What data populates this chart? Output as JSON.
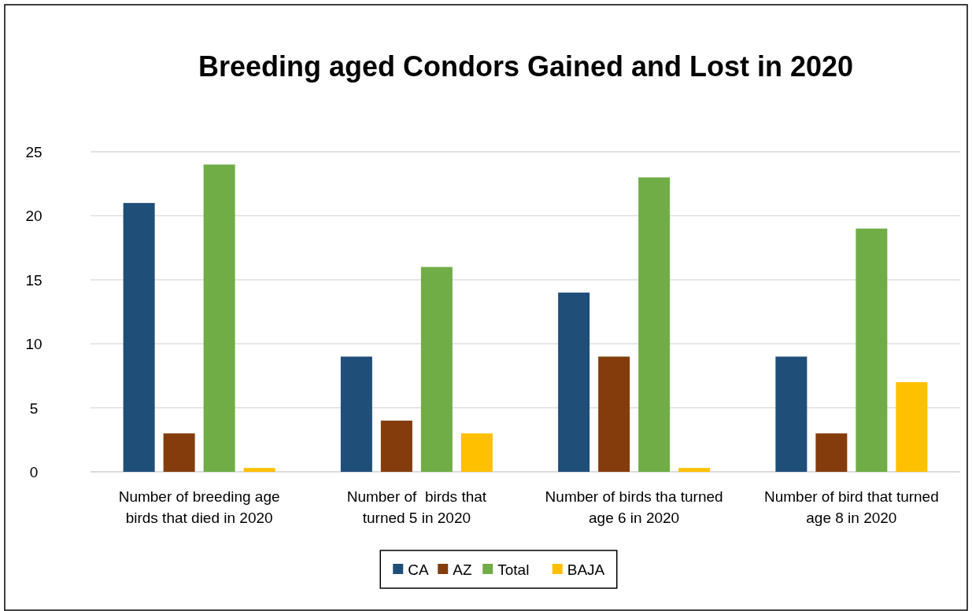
{
  "chart_data": {
    "type": "bar",
    "title": "Breeding aged Condors Gained and Lost in 2020",
    "categories": [
      "Number of breeding age birds that died in 2020",
      "Number of  birds that turned 5 in 2020",
      "Number of birds tha turned age 6 in 2020",
      "Number of bird that turned age 8 in 2020"
    ],
    "series": [
      {
        "name": "CA",
        "color": "#1f4e79",
        "values": [
          21,
          9,
          14,
          9
        ]
      },
      {
        "name": "AZ",
        "color": "#843c0c",
        "values": [
          3,
          4,
          9,
          3
        ]
      },
      {
        "name": "Total",
        "color": "#70ad47",
        "values": [
          24,
          16,
          23,
          19
        ]
      },
      {
        "name": "BAJA",
        "color": "#ffc000",
        "values": [
          0.3,
          3,
          0.3,
          7
        ]
      }
    ],
    "ylim": [
      0,
      25
    ],
    "yticks": [
      0,
      5,
      10,
      15,
      20,
      25
    ],
    "grid": "y",
    "legend": "bottom"
  }
}
